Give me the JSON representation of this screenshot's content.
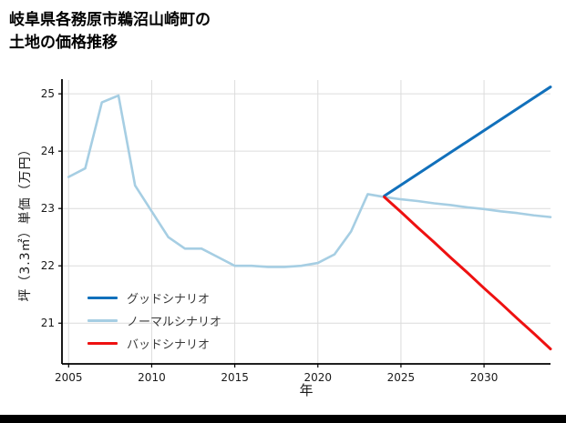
{
  "chart_data": {
    "type": "line",
    "title": "岐阜県各務原市鵜沼山崎町の土地の価格推移",
    "title_lines": [
      "岐阜県各務原市鵜沼山崎町の",
      "土地の価格推移"
    ],
    "xlabel": "年",
    "ylabel": "坪（3.3㎡）単価（万円）",
    "xlim": [
      2004.6,
      2034.0
    ],
    "ylim": [
      20.29,
      25.24
    ],
    "xticks": [
      2005,
      2010,
      2015,
      2020,
      2025,
      2030
    ],
    "yticks": [
      21,
      22,
      23,
      24,
      25
    ],
    "grid": true,
    "legend_position": "lower left",
    "colors": {
      "grid": "#dcdcdc",
      "spine": "#000000"
    },
    "series": [
      {
        "id": "good",
        "name": "グッドシナリオ",
        "color": "#1170bb",
        "width": 3,
        "x": [
          2024,
          2025,
          2026,
          2027,
          2028,
          2029,
          2030,
          2031,
          2032,
          2033,
          2034
        ],
        "y": [
          23.22,
          23.41,
          23.6,
          23.79,
          23.98,
          24.17,
          24.36,
          24.55,
          24.74,
          24.93,
          25.12
        ]
      },
      {
        "id": "normal",
        "name": "ノーマルシナリオ",
        "color": "#a6cee3",
        "width": 2.6,
        "x": [
          2005,
          2006,
          2007,
          2008,
          2009,
          2010,
          2011,
          2012,
          2013,
          2014,
          2015,
          2016,
          2017,
          2018,
          2019,
          2020,
          2021,
          2022,
          2023,
          2024,
          2025,
          2026,
          2027,
          2028,
          2029,
          2030,
          2031,
          2032,
          2033,
          2034
        ],
        "y": [
          23.55,
          23.7,
          24.85,
          24.97,
          23.4,
          22.95,
          22.5,
          22.3,
          22.3,
          22.15,
          22.0,
          22.0,
          21.98,
          21.98,
          22.0,
          22.05,
          22.2,
          22.6,
          23.25,
          23.2,
          23.16,
          23.13,
          23.09,
          23.06,
          23.02,
          22.99,
          22.95,
          22.92,
          22.88,
          22.85
        ]
      },
      {
        "id": "bad",
        "name": "バッドシナリオ",
        "color": "#ee1111",
        "width": 3,
        "x": [
          2024,
          2025,
          2026,
          2027,
          2028,
          2029,
          2030,
          2031,
          2032,
          2033,
          2034
        ],
        "y": [
          23.2,
          22.94,
          22.67,
          22.41,
          22.14,
          21.88,
          21.61,
          21.35,
          21.08,
          20.82,
          20.55
        ]
      }
    ]
  }
}
